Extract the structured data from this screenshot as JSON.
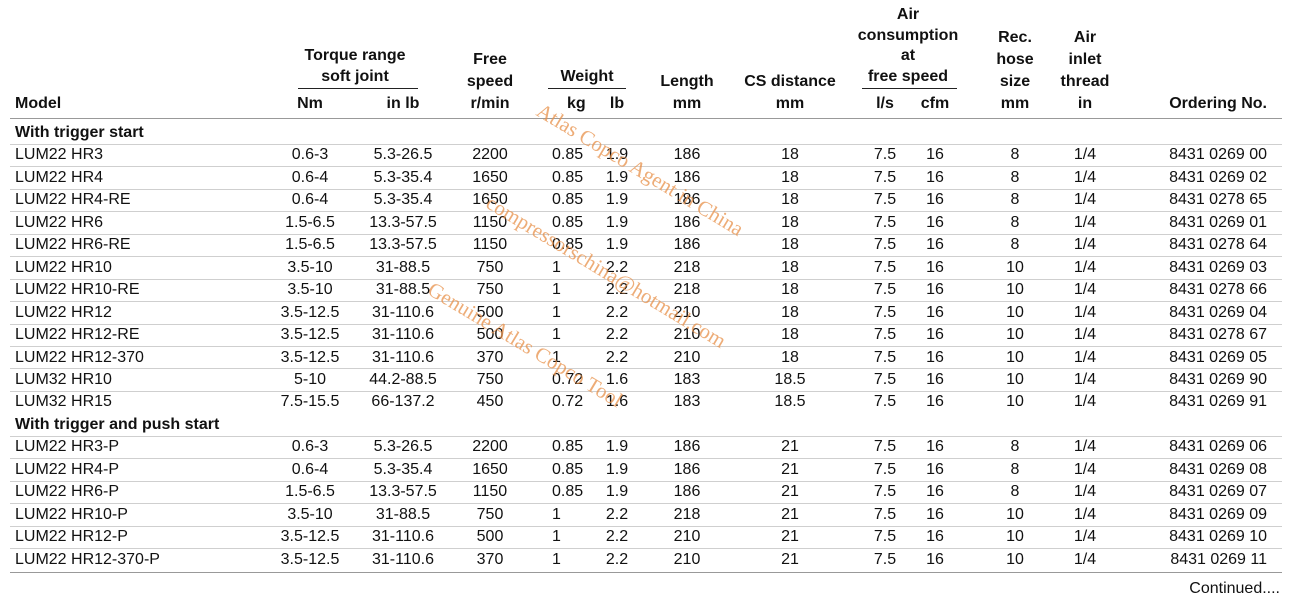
{
  "header": {
    "groups": [
      {
        "lines": [
          "Torque range",
          "soft joint"
        ]
      },
      {
        "lines": [
          "Weight"
        ]
      },
      {
        "lines": [
          "Air",
          "consumption",
          "at",
          "free speed"
        ]
      }
    ],
    "columns": [
      {
        "lines": [
          "Model"
        ]
      },
      {
        "lines": [
          "Nm"
        ]
      },
      {
        "lines": [
          "in lb"
        ]
      },
      {
        "lines": [
          "Free",
          "speed",
          "r/min"
        ]
      },
      {
        "lines": [
          "kg"
        ]
      },
      {
        "lines": [
          "lb"
        ]
      },
      {
        "lines": [
          "Length",
          "mm"
        ]
      },
      {
        "lines": [
          "CS distance",
          "mm"
        ]
      },
      {
        "lines": [
          "l/s"
        ]
      },
      {
        "lines": [
          "cfm"
        ]
      },
      {
        "lines": [
          "Rec.",
          "hose",
          "size",
          "mm"
        ]
      },
      {
        "lines": [
          "Air",
          "inlet",
          "thread",
          "in"
        ]
      },
      {
        "lines": [
          "Ordering No."
        ]
      }
    ]
  },
  "sections": [
    {
      "title": "With trigger start",
      "rows": [
        [
          "LUM22 HR3",
          "0.6-3",
          "5.3-26.5",
          "2200",
          "0.85",
          "1.9",
          "186",
          "18",
          "7.5",
          "16",
          "8",
          "1/4",
          "8431 0269 00"
        ],
        [
          "LUM22 HR4",
          "0.6-4",
          "5.3-35.4",
          "1650",
          "0.85",
          "1.9",
          "186",
          "18",
          "7.5",
          "16",
          "8",
          "1/4",
          "8431 0269 02"
        ],
        [
          "LUM22 HR4-RE",
          "0.6-4",
          "5.3-35.4",
          "1650",
          "0.85",
          "1.9",
          "186",
          "18",
          "7.5",
          "16",
          "8",
          "1/4",
          "8431 0278 65"
        ],
        [
          "LUM22 HR6",
          "1.5-6.5",
          "13.3-57.5",
          "1150",
          "0.85",
          "1.9",
          "186",
          "18",
          "7.5",
          "16",
          "8",
          "1/4",
          "8431 0269 01"
        ],
        [
          "LUM22 HR6-RE",
          "1.5-6.5",
          "13.3-57.5",
          "1150",
          "0.85",
          "1.9",
          "186",
          "18",
          "7.5",
          "16",
          "8",
          "1/4",
          "8431 0278 64"
        ],
        [
          "LUM22 HR10",
          "3.5-10",
          "31-88.5",
          "750",
          "1",
          "2.2",
          "218",
          "18",
          "7.5",
          "16",
          "10",
          "1/4",
          "8431 0269 03"
        ],
        [
          "LUM22 HR10-RE",
          "3.5-10",
          "31-88.5",
          "750",
          "1",
          "2.2",
          "218",
          "18",
          "7.5",
          "16",
          "10",
          "1/4",
          "8431 0278 66"
        ],
        [
          "LUM22 HR12",
          "3.5-12.5",
          "31-110.6",
          "500",
          "1",
          "2.2",
          "210",
          "18",
          "7.5",
          "16",
          "10",
          "1/4",
          "8431 0269 04"
        ],
        [
          "LUM22 HR12-RE",
          "3.5-12.5",
          "31-110.6",
          "500",
          "1",
          "2.2",
          "210",
          "18",
          "7.5",
          "16",
          "10",
          "1/4",
          "8431 0278 67"
        ],
        [
          "LUM22 HR12-370",
          "3.5-12.5",
          "31-110.6",
          "370",
          "1",
          "2.2",
          "210",
          "18",
          "7.5",
          "16",
          "10",
          "1/4",
          "8431 0269 05"
        ],
        [
          "LUM32 HR10",
          "5-10",
          "44.2-88.5",
          "750",
          "0.72",
          "1.6",
          "183",
          "18.5",
          "7.5",
          "16",
          "10",
          "1/4",
          "8431 0269 90"
        ],
        [
          "LUM32 HR15",
          "7.5-15.5",
          "66-137.2",
          "450",
          "0.72",
          "1.6",
          "183",
          "18.5",
          "7.5",
          "16",
          "10",
          "1/4",
          "8431 0269 91"
        ]
      ]
    },
    {
      "title": "With trigger and push start",
      "rows": [
        [
          "LUM22 HR3-P",
          "0.6-3",
          "5.3-26.5",
          "2200",
          "0.85",
          "1.9",
          "186",
          "21",
          "7.5",
          "16",
          "8",
          "1/4",
          "8431 0269 06"
        ],
        [
          "LUM22 HR4-P",
          "0.6-4",
          "5.3-35.4",
          "1650",
          "0.85",
          "1.9",
          "186",
          "21",
          "7.5",
          "16",
          "8",
          "1/4",
          "8431 0269 08"
        ],
        [
          "LUM22 HR6-P",
          "1.5-6.5",
          "13.3-57.5",
          "1150",
          "0.85",
          "1.9",
          "186",
          "21",
          "7.5",
          "16",
          "8",
          "1/4",
          "8431 0269 07"
        ],
        [
          "LUM22 HR10-P",
          "3.5-10",
          "31-88.5",
          "750",
          "1",
          "2.2",
          "218",
          "21",
          "7.5",
          "16",
          "10",
          "1/4",
          "8431 0269 09"
        ],
        [
          "LUM22 HR12-P",
          "3.5-12.5",
          "31-110.6",
          "500",
          "1",
          "2.2",
          "210",
          "21",
          "7.5",
          "16",
          "10",
          "1/4",
          "8431 0269 10"
        ],
        [
          "LUM22 HR12-370-P",
          "3.5-12.5",
          "31-110.6",
          "370",
          "1",
          "2.2",
          "210",
          "21",
          "7.5",
          "16",
          "10",
          "1/4",
          "8431 0269 11"
        ]
      ]
    }
  ],
  "footer": "Continued....",
  "watermark": [
    "Atlas Copco Agent in China",
    "compressorschina@hotmail.com",
    "Genuine Atlas Copco Tool"
  ]
}
